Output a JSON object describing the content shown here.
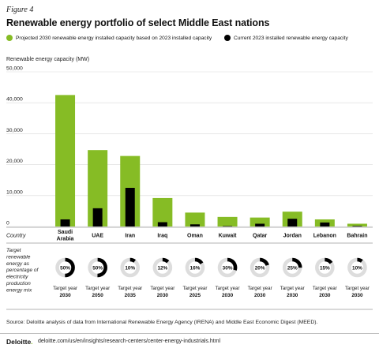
{
  "figure_label": "Figure 4",
  "title": "Renewable energy portfolio of select Middle East nations",
  "legend": {
    "projected": "Projected 2030 renewable energy installed capacity based on 2023 installed capacity",
    "current": "Current 2023 installed renewable energy capacity"
  },
  "colors": {
    "projected": "#86bc25",
    "current": "#000000",
    "ring_track": "#dddddd",
    "ring_fill": "#000000"
  },
  "y_axis_label": "Renewable energy capacity (MW)",
  "row_country_label": "Country",
  "row_target_label": [
    "Target",
    "renewable",
    "energy as",
    "percentage of",
    "electricity",
    "production",
    "energy mix"
  ],
  "target_prefix": "Target year",
  "source": "Source: Deloitte analysis of data from International Renewable Energy Agency (IRENA) and Middle East Economic Digest (MEED).",
  "footer": {
    "brand": "Deloitte",
    "brand_dot": ".",
    "url": "deloitte.com/us/en/insights/research-centers/center-energy-industrials.html"
  },
  "chart_data": {
    "type": "bar",
    "ylabel": "Renewable energy capacity (MW)",
    "ylim": [
      0,
      50000
    ],
    "yticks": [
      0,
      10000,
      20000,
      30000,
      40000,
      50000
    ],
    "ytick_labels": [
      "0",
      "10,000",
      "20,000",
      "30,000",
      "40,000",
      "50,000"
    ],
    "grid": true,
    "legend_position": "top",
    "categories": [
      [
        "Saudi",
        "Arabia"
      ],
      [
        "UAE"
      ],
      [
        "Iran"
      ],
      [
        "Iraq"
      ],
      [
        "Oman"
      ],
      [
        "Kuwait"
      ],
      [
        "Qatar"
      ],
      [
        "Jordan"
      ],
      [
        "Lebanon"
      ],
      [
        "Bahrain"
      ]
    ],
    "series": [
      {
        "name": "Projected 2030 renewable energy installed capacity based on 2023 installed capacity",
        "values": [
          42500,
          24700,
          22800,
          9200,
          4500,
          3100,
          2900,
          4800,
          2300,
          900
        ]
      },
      {
        "name": "Current 2023 installed renewable energy capacity",
        "values": [
          2300,
          5900,
          12500,
          1400,
          700,
          150,
          900,
          2500,
          1300,
          200
        ]
      }
    ],
    "targets": [
      {
        "percent": 50,
        "label": "50%",
        "year": "2030"
      },
      {
        "percent": 50,
        "label": "50%",
        "year": "2050"
      },
      {
        "percent": 10,
        "label": "10%",
        "year": "2035"
      },
      {
        "percent": 12,
        "label": "12%",
        "year": "2030"
      },
      {
        "percent": 16,
        "label": "16%",
        "year": "2025"
      },
      {
        "percent": 30,
        "label": "30%",
        "year": "2030"
      },
      {
        "percent": 20,
        "label": "20%",
        "year": "2030"
      },
      {
        "percent": 25,
        "label": "25%",
        "year": "2030"
      },
      {
        "percent": 15,
        "label": "15%",
        "year": "2030"
      },
      {
        "percent": 10,
        "label": "10%",
        "year": "2030"
      }
    ]
  }
}
